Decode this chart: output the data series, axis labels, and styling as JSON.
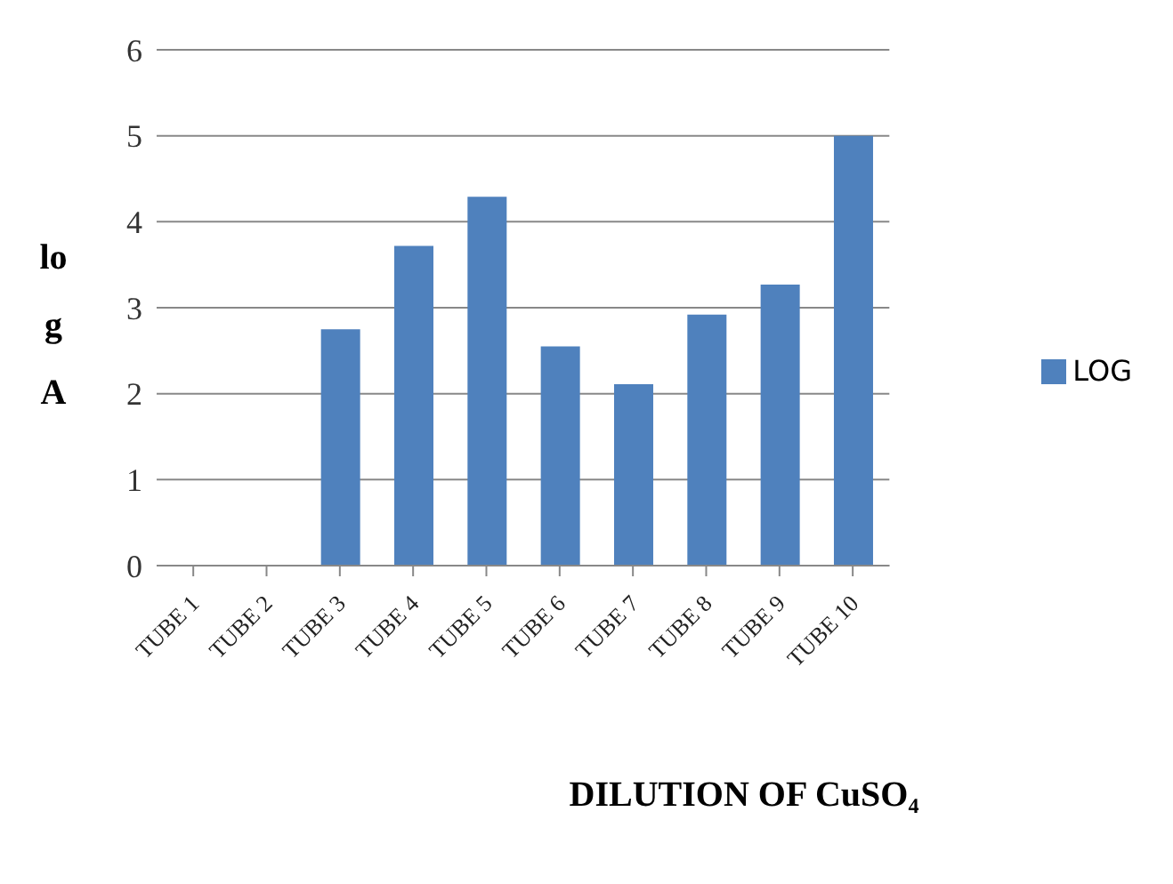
{
  "chart_data": {
    "type": "bar",
    "xlabel": "DILUTION OF CuSO₄",
    "ylabel": "log A",
    "categories": [
      "TUBE 1",
      "TUBE 2",
      "TUBE 3",
      "TUBE 4",
      "TUBE 5",
      "TUBE 6",
      "TUBE 7",
      "TUBE 8",
      "TUBE 9",
      "TUBE 10"
    ],
    "series": [
      {
        "name": "LOG",
        "color": "#4f81bd",
        "values": [
          0,
          0,
          2.75,
          3.72,
          4.29,
          2.55,
          2.11,
          2.92,
          3.27,
          5.0
        ]
      }
    ],
    "ylim": [
      0,
      6
    ],
    "yticks": [
      0,
      1,
      2,
      3,
      4,
      5,
      6
    ],
    "grid": "y",
    "legend": "right"
  }
}
